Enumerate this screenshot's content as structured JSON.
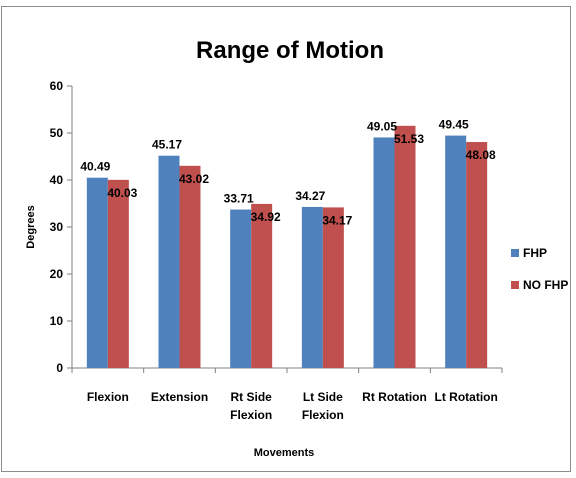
{
  "chart_data": {
    "type": "bar",
    "title": "Range of Motion",
    "xlabel": "Movements",
    "ylabel": "Degrees",
    "ylim": [
      0,
      60
    ],
    "yticks": [
      "0",
      "10",
      "20",
      "30",
      "40",
      "50",
      "60"
    ],
    "categories": [
      [
        "Flexion"
      ],
      [
        "Extension"
      ],
      [
        "Rt Side",
        "Flexion"
      ],
      [
        "Lt Side",
        "Flexion"
      ],
      [
        "Rt Rotation"
      ],
      [
        "Lt Rotation"
      ]
    ],
    "series": [
      {
        "name": "FHP",
        "color": "#4f81bd",
        "values": [
          40.49,
          45.17,
          33.71,
          34.27,
          49.05,
          49.45
        ],
        "labels": [
          "40.49",
          "45.17",
          "33.71",
          "34.27",
          "49.05",
          "49.45"
        ]
      },
      {
        "name": "NO FHP",
        "color": "#c0504d",
        "values": [
          40.03,
          43.02,
          34.92,
          34.17,
          51.53,
          48.08
        ],
        "labels": [
          "40.03",
          "43.02",
          "34.92",
          "34.17",
          "51.53",
          "48.08"
        ]
      }
    ],
    "grid": false,
    "legend": "right"
  }
}
